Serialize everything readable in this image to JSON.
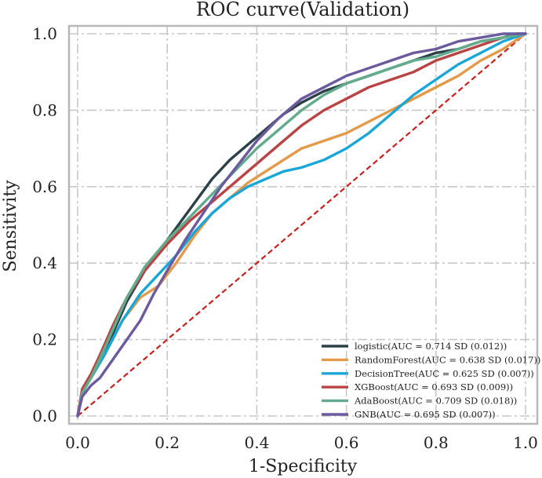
{
  "chart_data": {
    "type": "line",
    "title": "ROC curve(Validation)",
    "xlabel": "1-Specificity",
    "ylabel": "Sensitivity",
    "xlim": [
      0.0,
      1.0
    ],
    "ylim": [
      0.0,
      1.0
    ],
    "xticks": [
      "0.0",
      "0.2",
      "0.4",
      "0.6",
      "0.8",
      "1.0"
    ],
    "yticks": [
      "0.0",
      "0.2",
      "0.4",
      "0.6",
      "0.8",
      "1.0"
    ],
    "grid": true,
    "legend_position": "lower-right",
    "reference_line": {
      "x": [
        0,
        1
      ],
      "y": [
        0,
        1
      ],
      "color": "#c8201e",
      "style": "dashed"
    },
    "series": [
      {
        "name": "logistic(AUC = 0.714 SD (0.012))",
        "color": "#2d4248",
        "x": [
          0,
          0.01,
          0.03,
          0.05,
          0.08,
          0.11,
          0.15,
          0.2,
          0.25,
          0.3,
          0.34,
          0.38,
          0.42,
          0.46,
          0.5,
          0.55,
          0.6,
          0.65,
          0.7,
          0.75,
          0.8,
          0.85,
          0.9,
          0.95,
          0.98,
          1.0
        ],
        "y": [
          0,
          0.06,
          0.1,
          0.14,
          0.22,
          0.3,
          0.38,
          0.46,
          0.54,
          0.62,
          0.67,
          0.71,
          0.75,
          0.79,
          0.82,
          0.85,
          0.87,
          0.89,
          0.91,
          0.93,
          0.95,
          0.96,
          0.98,
          0.99,
          1.0,
          1.0
        ]
      },
      {
        "name": "RandomForest(AUC = 0.638 SD (0.017))",
        "color": "#e39a4a",
        "x": [
          0,
          0.01,
          0.03,
          0.06,
          0.1,
          0.14,
          0.18,
          0.22,
          0.26,
          0.3,
          0.34,
          0.38,
          0.42,
          0.46,
          0.5,
          0.55,
          0.6,
          0.65,
          0.7,
          0.75,
          0.8,
          0.85,
          0.9,
          0.95,
          1.0
        ],
        "y": [
          0,
          0.06,
          0.1,
          0.16,
          0.25,
          0.31,
          0.34,
          0.4,
          0.47,
          0.53,
          0.57,
          0.61,
          0.64,
          0.67,
          0.7,
          0.72,
          0.74,
          0.77,
          0.8,
          0.83,
          0.86,
          0.89,
          0.93,
          0.96,
          1.0
        ]
      },
      {
        "name": "DecisionTree(AUC = 0.625 SD (0.007))",
        "color": "#1ba6d8",
        "x": [
          0,
          0.01,
          0.03,
          0.06,
          0.1,
          0.14,
          0.18,
          0.22,
          0.26,
          0.3,
          0.34,
          0.38,
          0.42,
          0.46,
          0.5,
          0.55,
          0.6,
          0.65,
          0.7,
          0.75,
          0.8,
          0.85,
          0.9,
          0.95,
          1.0
        ],
        "y": [
          0,
          0.06,
          0.1,
          0.16,
          0.25,
          0.32,
          0.37,
          0.42,
          0.48,
          0.53,
          0.57,
          0.6,
          0.62,
          0.64,
          0.65,
          0.67,
          0.7,
          0.74,
          0.79,
          0.84,
          0.88,
          0.92,
          0.95,
          0.98,
          1.0
        ]
      },
      {
        "name": "XGBoost(AUC = 0.693 SD (0.009))",
        "color": "#b84444",
        "x": [
          0,
          0.01,
          0.03,
          0.05,
          0.08,
          0.11,
          0.15,
          0.2,
          0.25,
          0.3,
          0.35,
          0.4,
          0.45,
          0.5,
          0.55,
          0.6,
          0.65,
          0.7,
          0.75,
          0.8,
          0.85,
          0.9,
          0.95,
          1.0
        ],
        "y": [
          0,
          0.07,
          0.11,
          0.16,
          0.24,
          0.31,
          0.38,
          0.45,
          0.51,
          0.56,
          0.61,
          0.66,
          0.71,
          0.76,
          0.8,
          0.83,
          0.86,
          0.88,
          0.9,
          0.93,
          0.95,
          0.97,
          0.99,
          1.0
        ]
      },
      {
        "name": "AdaBoost(AUC = 0.709 SD (0.018))",
        "color": "#63ab8d",
        "x": [
          0,
          0.01,
          0.03,
          0.05,
          0.08,
          0.11,
          0.15,
          0.2,
          0.25,
          0.3,
          0.35,
          0.4,
          0.45,
          0.5,
          0.55,
          0.6,
          0.65,
          0.7,
          0.75,
          0.8,
          0.85,
          0.9,
          0.95,
          1.0
        ],
        "y": [
          0,
          0.06,
          0.1,
          0.15,
          0.23,
          0.31,
          0.39,
          0.46,
          0.52,
          0.58,
          0.64,
          0.7,
          0.75,
          0.8,
          0.84,
          0.87,
          0.89,
          0.91,
          0.93,
          0.94,
          0.96,
          0.98,
          0.99,
          1.0
        ]
      },
      {
        "name": "GNB(AUC = 0.695 SD (0.007))",
        "color": "#6c5a9e",
        "x": [
          0,
          0.01,
          0.03,
          0.05,
          0.08,
          0.11,
          0.14,
          0.17,
          0.2,
          0.24,
          0.28,
          0.32,
          0.36,
          0.4,
          0.45,
          0.5,
          0.55,
          0.6,
          0.65,
          0.7,
          0.75,
          0.8,
          0.85,
          0.9,
          0.95,
          1.0
        ],
        "y": [
          0,
          0.05,
          0.08,
          0.1,
          0.15,
          0.2,
          0.25,
          0.32,
          0.38,
          0.46,
          0.53,
          0.6,
          0.66,
          0.72,
          0.78,
          0.83,
          0.86,
          0.89,
          0.91,
          0.93,
          0.95,
          0.96,
          0.98,
          0.99,
          1.0,
          1.0
        ]
      }
    ]
  }
}
